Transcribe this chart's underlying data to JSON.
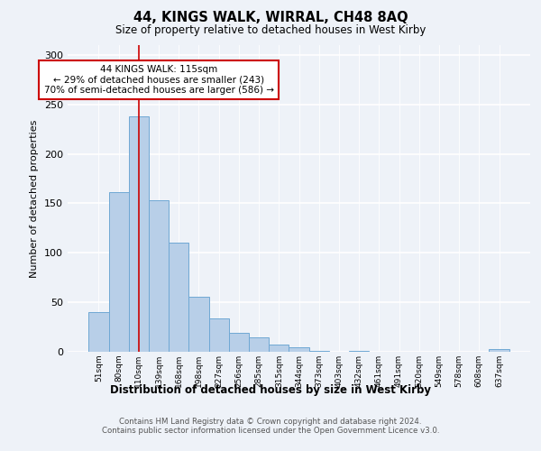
{
  "title1": "44, KINGS WALK, WIRRAL, CH48 8AQ",
  "title2": "Size of property relative to detached houses in West Kirby",
  "xlabel": "Distribution of detached houses by size in West Kirby",
  "ylabel": "Number of detached properties",
  "categories": [
    "51sqm",
    "80sqm",
    "110sqm",
    "139sqm",
    "168sqm",
    "198sqm",
    "227sqm",
    "256sqm",
    "285sqm",
    "315sqm",
    "344sqm",
    "373sqm",
    "403sqm",
    "432sqm",
    "461sqm",
    "491sqm",
    "520sqm",
    "549sqm",
    "578sqm",
    "608sqm",
    "637sqm"
  ],
  "bar_heights": [
    40,
    161,
    238,
    153,
    110,
    56,
    34,
    19,
    15,
    7,
    5,
    1,
    3
  ],
  "bar_heights_full": [
    40,
    161,
    238,
    153,
    110,
    56,
    34,
    19,
    15,
    7,
    5,
    1,
    0,
    1,
    0,
    0,
    0,
    0,
    0,
    0,
    3
  ],
  "bar_color": "#b8cfe8",
  "bar_edge_color": "#6fa8d4",
  "annotation_line_color": "#cc0000",
  "annotation_box_text": "44 KINGS WALK: 115sqm\n← 29% of detached houses are smaller (243)\n70% of semi-detached houses are larger (586) →",
  "annotation_box_color": "#cc0000",
  "footer": "Contains HM Land Registry data © Crown copyright and database right 2024.\nContains public sector information licensed under the Open Government Licence v3.0.",
  "ylim": [
    0,
    310
  ],
  "yticks": [
    0,
    50,
    100,
    150,
    200,
    250,
    300
  ],
  "background_color": "#eef2f8"
}
